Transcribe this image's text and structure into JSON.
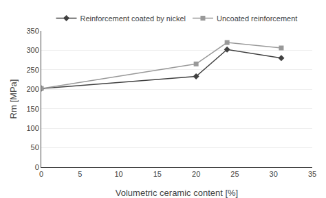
{
  "chart_data": {
    "type": "line",
    "x": [
      0,
      20,
      24,
      31
    ],
    "series": [
      {
        "name": "Reinforcement coated by nickel",
        "color": "#404040",
        "marker": "diamond",
        "values": [
          202,
          233,
          302,
          280
        ]
      },
      {
        "name": "Uncoated reinforcement",
        "color": "#999999",
        "marker": "square",
        "values": [
          202,
          265,
          320,
          306
        ]
      }
    ],
    "xlabel": "Volumetric ceramic content [%]",
    "ylabel": "Rm [MPa]",
    "xlim": [
      0,
      35
    ],
    "ylim": [
      0,
      350
    ],
    "xticks": [
      0,
      5,
      10,
      15,
      20,
      25,
      30,
      35
    ],
    "yticks": [
      0,
      50,
      100,
      150,
      200,
      250,
      300,
      350
    ],
    "grid": "y",
    "legend": "upper center"
  }
}
